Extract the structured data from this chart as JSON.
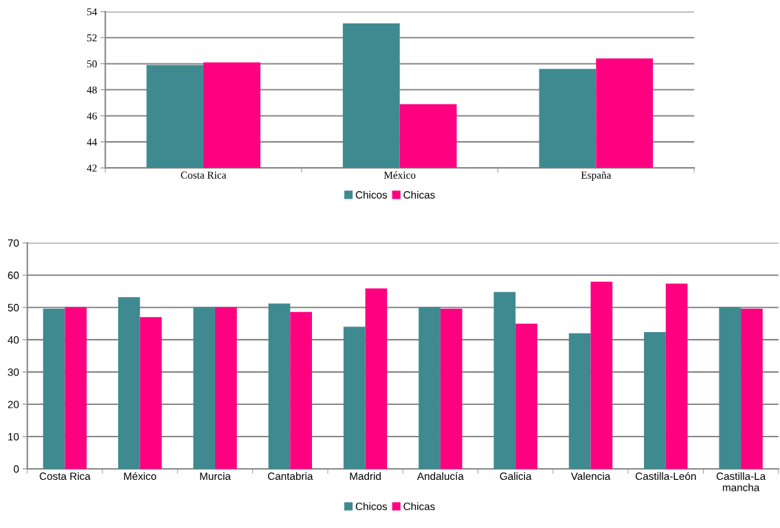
{
  "chart_data": [
    {
      "type": "bar",
      "categories": [
        "Costa Rica",
        "México",
        "España"
      ],
      "series": [
        {
          "name": "Chicos",
          "color": "#3e8a90",
          "values": [
            49.9,
            53.1,
            49.6
          ]
        },
        {
          "name": "Chicas",
          "color": "#ff0080",
          "values": [
            50.1,
            46.9,
            50.4
          ]
        }
      ],
      "ylim": [
        42,
        54
      ],
      "yticks": [
        42,
        44,
        46,
        48,
        50,
        52,
        54
      ],
      "grid": "y",
      "legend": "bottom"
    },
    {
      "type": "bar",
      "categories": [
        "Costa Rica",
        "México",
        "Murcia",
        "Cantabria",
        "Madrid",
        "Andalucía",
        "Galicia",
        "Valencia",
        "Castilla-León",
        "Castilla-La mancha"
      ],
      "series": [
        {
          "name": "Chicos",
          "color": "#3e8a90",
          "values": [
            49.6,
            53.2,
            50.1,
            51.2,
            44.0,
            50.1,
            54.8,
            42.0,
            42.4,
            50.1
          ]
        },
        {
          "name": "Chicas",
          "color": "#ff0080",
          "values": [
            50.1,
            47.0,
            50.1,
            48.6,
            55.9,
            49.6,
            45.0,
            58.0,
            57.4,
            49.6
          ]
        }
      ],
      "ylim": [
        0,
        70
      ],
      "yticks": [
        0,
        10,
        20,
        30,
        40,
        50,
        60,
        70
      ],
      "grid": "y",
      "legend": "bottom"
    }
  ]
}
